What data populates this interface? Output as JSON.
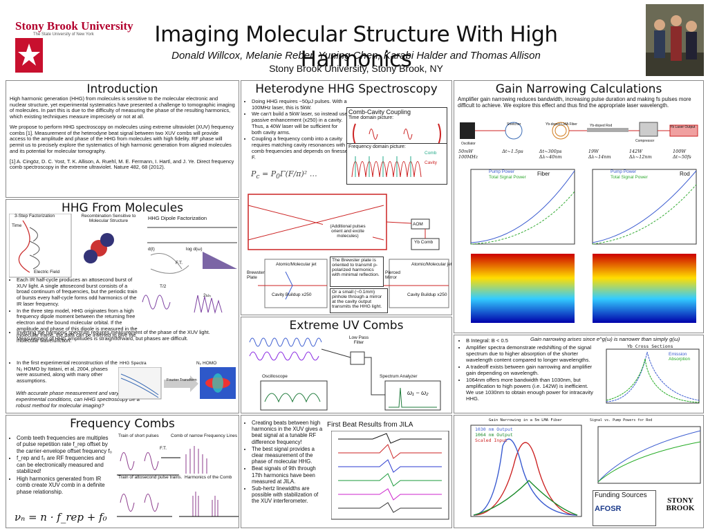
{
  "header": {
    "university": "Stony Brook University",
    "university_sub": "The State University of New York",
    "title": "Imaging Molecular Structure With High Harmonics",
    "authors": "Donald Willcox, Melanie Reber, Yuning Chen, Karabi Halder and Thomas Allison",
    "affiliation": "Stony Brook University, Stony Brook, NY"
  },
  "introduction": {
    "heading": "Introduction",
    "paragraphs": [
      "High harmonic generation (HHG) from molecules is sensitive to the molecular electronic and nuclear structure, yet experimental systematics have presented a challenge to tomographic imaging of molecules. In part this is due to the difficulty of measuring the phase of the resulting harmonics, which existing techniques measure imprecisely or not at all.",
      "We propose to perform HHG spectroscopy on molecules using extreme ultraviolet (XUV) frequency combs [1]. Measurement of the heterodyne beat signal between two XUV combs will provide access to the amplitude and phase of the HHG from molecules with high fidelity. RF phase will permit us to precisely explore the systematics of high harmonic generation from aligned molecules and its potential for molecular tomography.",
      "[1] A. Cingöz, D. C. Yost, T. K. Allison, A. Ruehl, M. E. Fermann, I. Hartl, and J. Ye. Direct frequency comb spectroscopy in the extreme ultraviolet. Nature 482, 68 (2012)."
    ]
  },
  "molecules": {
    "heading": "HHG From Molecules",
    "figure_labels": [
      "3-Step Factorization",
      "Recombination Sensitive to Molecular Structure",
      "HHG Dipole Factorization",
      "Time",
      "Electric Field",
      "d(t)",
      "log d(ω)",
      "F.T.",
      "T/2",
      "2ω₀",
      "HHG Spectra",
      "N₂ HOMO",
      "Fourier Transform"
    ],
    "bullets": [
      "Each IR half-cycle produces an attosecond burst of XUV light. A single attosecond burst consists of a broad continuum of frequencies, but the periodic train of bursts every half-cycle forms odd harmonics of the IR laser frequency.",
      "In the three step model, HHG originates from a high frequency dipole moment between the returning free electron and the bound molecular orbital. If the amplitude and phase of this dipole is measured in the molecular frame, the data can be inverted to give the molecular wavefunction.",
      "Inverting the harmonic spectrum requires measurement of the phase of the XUV light. Measurement of HHG amplitudes is straightforward, but phases are difficult.",
      "In the first experimental reconstruction of the N₂ HOMO by Itatani, et al, 2004, phases were assumed, along with many other assumptions."
    ],
    "note": "With accurate phase measurement and varying experimental conditions, can HHG spectroscopy be a robust method for molecular imaging?"
  },
  "freq_combs": {
    "heading": "Frequency Combs",
    "bullets": [
      "Comb teeth frequencies are multiples of pulse repetition rate f_rep offset by the carrier-envelope offset frequency f₀",
      "f_rep and f₀ are RF frequencies and can be electronically measured and stabilized!",
      "High harmonics generated from IR comb create XUV comb in a definite phase relationship."
    ],
    "formula": "νₙ = n · f_rep + f₀",
    "figure_labels": [
      "Train of short pulses",
      "Comb of narrow Frequency Lines",
      "Train of attosecond pulse trains.",
      "Harmonics of the Comb",
      "F.T."
    ]
  },
  "heterodyne": {
    "heading": "Heterodyne HHG Spectroscopy",
    "bullets": [
      "Doing HHG requires ~50μJ pulses. With a 100MHz laser, this is 5kW.",
      "We can't build a 5kW laser, so instead use passive enhancement (x250) in a cavity. Thus, a 40W laser will be sufficient for both cavity arms.",
      "Coupling a frequency comb into a cavity requires matching cavity resonances with comb frequencies and depends on finesse F."
    ],
    "coupling_title": "Comb-Cavity Coupling",
    "time_domain": "Time domain picture:",
    "freq_domain": "Frequency domain picture:",
    "comb": "Comb",
    "cavity": "Cavity",
    "extra_pulses": "(Additional pulses orient and excite molecules)",
    "brewster_note": "The Brewster plate is oriented to transmit p-polarized harmonics with minimal reflection.",
    "pinhole_note": "Or a small (~0.1mm) pinhole through a mirror at the cavity output transmits the HHG light.",
    "labels": [
      "Brewster Plate",
      "Pierced Mirror",
      "Cavity Buildup x250",
      "Yb Comb",
      "AOM",
      "Atomic/Molecular jet"
    ]
  },
  "euv": {
    "heading": "Extreme UV Combs",
    "labels": [
      "Low Pass Filter",
      "Oscilloscope",
      "Spectrum Analyzer",
      "ω₁ − ω₂"
    ]
  },
  "beats": {
    "bullets": [
      "Creating beats between high harmonics in the XUV gives a beat signal at a tunable RF difference frequency!",
      "The best signal provides a clear measurement of the phase of molecular HHG.",
      "Beat signals of 9th through 17th harmonics have been measured at JILA.",
      "Sub-hertz linewidths are possible with stabilization of the XUV interferometer."
    ],
    "figure_title": "First Beat Results from JILA"
  },
  "gain": {
    "heading": "Gain Narrowing Calculations",
    "intro": "Amplifier gain narrowing reduces bandwidth, increasing pulse duration and making fs pulses more difficult to achieve. We explore this effect and thus find the appropriate laser wavelength.",
    "chain": [
      "Oscillator",
      "Stretcher",
      "Yb-doped LMA Fiber",
      "Yb-doped Rod",
      "Compressor",
      "Yb Laser Output"
    ],
    "chain_params": [
      "50mW 100MHz",
      "Δt~1.5ps",
      "Δt~300ps Δλ~40nm",
      "19W Δλ~14nm",
      "142W Δλ~12nm",
      "100W Δt~50fs"
    ],
    "plot_titles": [
      "Fiber",
      "Rod"
    ],
    "legend": [
      "Pump Power",
      "Total Signal Power"
    ],
    "caption": "Gain narrowing arises since e^g(ω) is narrower than simply g(ω)",
    "bullets": [
      "B Integral: B < 0.5",
      "Amplifier spectra demonstrate redshifting of the signal spectrum due to higher absorption of the shorter wavelength content compared to longer wavelengths.",
      "A tradeoff exists between gain narrowing and amplifier gain depending on wavelength.",
      "1064nm offers more bandwidth than 1030nm, but amplification to high powers (i.e. 142W) is inefficient. We use 1030nm to obtain enough power for intracavity HHG."
    ],
    "cross_title": "Yb Cross Sections",
    "cross_legend": [
      "Emission",
      "Absorption"
    ],
    "narrow_title": "Gain Narrowing in a 5m LMA Fiber",
    "narrow_legend": [
      "1030 nm Output",
      "1064 nm Output",
      "Scaled Input"
    ],
    "rod_title": "Signal vs. Pump Powers for Rod",
    "funding": "Funding Sources",
    "sponsor": "AFOSR",
    "sponsor2": "STONY BROOK"
  }
}
